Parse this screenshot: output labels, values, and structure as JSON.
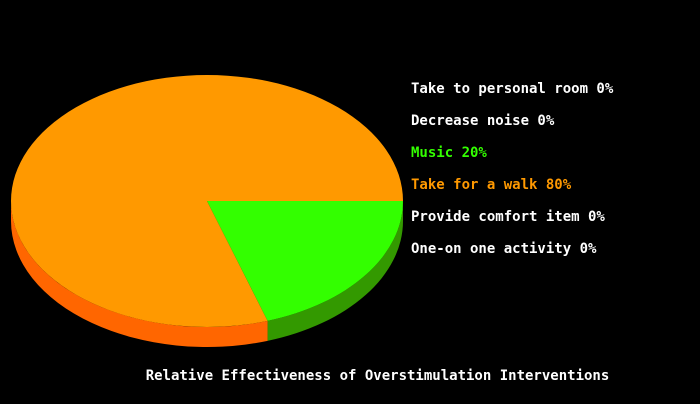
{
  "chart_data": {
    "type": "pie",
    "title": "Relative Effectiveness of Overstimulation Interventions",
    "slices": [
      {
        "label": "Take to personal room",
        "value": 0,
        "display": "Take to personal room 0%",
        "color": "#ffffff"
      },
      {
        "label": "Decrease noise",
        "value": 0,
        "display": "Decrease noise 0%",
        "color": "#ffffff"
      },
      {
        "label": "Music",
        "value": 20,
        "display": "Music 20%",
        "color": "#33ff00",
        "side_color": "#339900"
      },
      {
        "label": "Take for a walk",
        "value": 80,
        "display": "Take for a walk 80%",
        "color": "#ff9900",
        "side_color": "#ff6600"
      },
      {
        "label": "Provide comfort item",
        "value": 0,
        "display": "Provide comfort item 0%",
        "color": "#ffffff"
      },
      {
        "label": "One-on one activity",
        "value": 0,
        "display": "One-on one activity 0%",
        "color": "#ffffff"
      }
    ],
    "legend_position": "right",
    "style": "3d-pie",
    "background": "#000000"
  }
}
